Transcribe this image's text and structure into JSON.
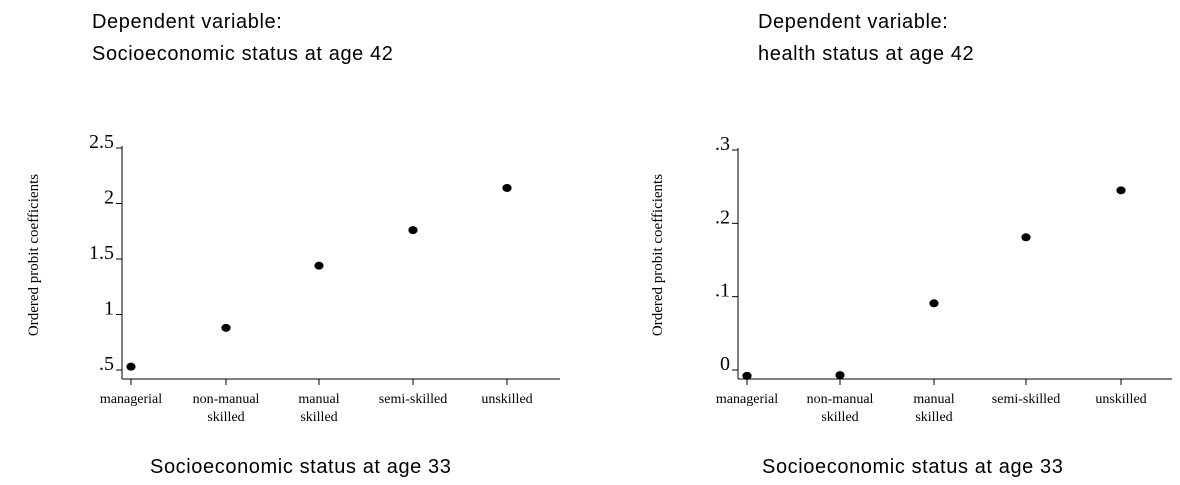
{
  "chart_data": [
    {
      "type": "scatter",
      "title_line1": "Dependent variable:",
      "title_line2": "Socioeconomic status at age 42",
      "xlabel": "Socioeconomic status at age 33",
      "ylabel": "Ordered probit coefficients",
      "categories": [
        [
          "managerial"
        ],
        [
          "non-manual",
          "skilled"
        ],
        [
          "manual",
          "skilled"
        ],
        [
          "semi-skilled"
        ],
        [
          "unskilled"
        ]
      ],
      "values": [
        0.53,
        0.88,
        1.44,
        1.76,
        2.14
      ],
      "ylim": [
        0.5,
        2.5
      ],
      "yticks": [
        0.5,
        1,
        1.5,
        2,
        2.5
      ],
      "ytick_labels": [
        ".5",
        "1",
        "1.5",
        "2",
        "2.5"
      ],
      "marker_color": "#000000"
    },
    {
      "type": "scatter",
      "title_line1": "Dependent variable:",
      "title_line2": "health status at age 42",
      "xlabel": "Socioeconomic status at age 33",
      "ylabel": "Ordered probit coefficients",
      "categories": [
        [
          "managerial"
        ],
        [
          "non-manual",
          "skilled"
        ],
        [
          "manual",
          "skilled"
        ],
        [
          "semi-skilled"
        ],
        [
          "unskilled"
        ]
      ],
      "values": [
        -0.008,
        -0.007,
        0.091,
        0.181,
        0.245
      ],
      "ylim": [
        0,
        0.3
      ],
      "yticks": [
        0,
        0.1,
        0.2,
        0.3
      ],
      "ytick_labels": [
        "0",
        ".1",
        ".2",
        ".3"
      ],
      "marker_color": "#000000"
    }
  ]
}
